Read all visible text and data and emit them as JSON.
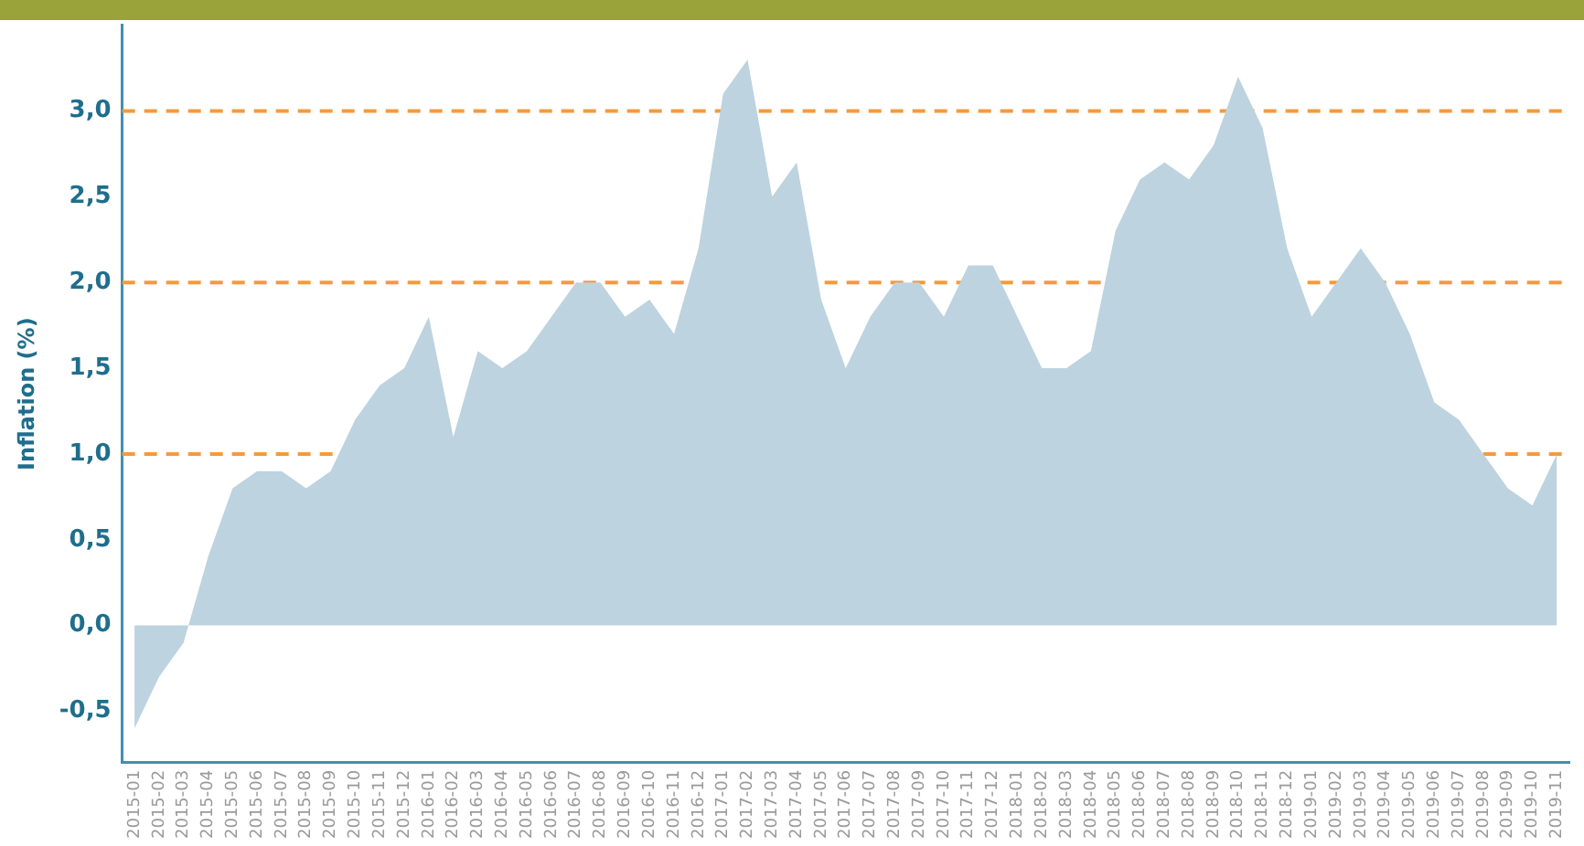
{
  "chart_data": {
    "type": "area",
    "ylabel": "Inflation (%)",
    "categories": [
      "2015-01",
      "2015-02",
      "2015-03",
      "2015-04",
      "2015-05",
      "2015-06",
      "2015-07",
      "2015-08",
      "2015-09",
      "2015-10",
      "2015-11",
      "2015-12",
      "2016-01",
      "2016-02",
      "2016-03",
      "2016-04",
      "2016-05",
      "2016-06",
      "2016-07",
      "2016-08",
      "2016-09",
      "2016-10",
      "2016-11",
      "2016-12",
      "2017-01",
      "2017-02",
      "2017-03",
      "2017-04",
      "2017-05",
      "2017-06",
      "2017-07",
      "2017-08",
      "2017-09",
      "2017-10",
      "2017-11",
      "2017-12",
      "2018-01",
      "2018-02",
      "2018-03",
      "2018-04",
      "2018-05",
      "2018-06",
      "2018-07",
      "2018-08",
      "2018-09",
      "2018-10",
      "2018-11",
      "2018-12",
      "2019-01",
      "2019-02",
      "2019-03",
      "2019-04",
      "2019-05",
      "2019-06",
      "2019-07",
      "2019-08",
      "2019-09",
      "2019-10",
      "2019-11"
    ],
    "values": [
      -0.6,
      -0.3,
      -0.1,
      0.4,
      0.8,
      0.9,
      0.9,
      0.8,
      0.9,
      1.2,
      1.4,
      1.5,
      1.8,
      1.1,
      1.6,
      1.5,
      1.6,
      1.8,
      2.0,
      2.0,
      1.8,
      1.9,
      1.7,
      2.2,
      3.1,
      3.3,
      2.5,
      2.7,
      1.9,
      1.5,
      1.8,
      2.0,
      2.0,
      1.8,
      2.1,
      2.1,
      1.8,
      1.5,
      1.5,
      1.6,
      2.3,
      2.6,
      2.7,
      2.6,
      2.8,
      3.2,
      2.9,
      2.2,
      1.8,
      2.0,
      2.2,
      2.0,
      1.7,
      1.3,
      1.2,
      1.0,
      0.8,
      0.7,
      1.0
    ],
    "color": "#bdd3df",
    "ylim": [
      -0.8,
      3.5
    ],
    "yticks": [
      {
        "value": -0.5,
        "label": "-0,5"
      },
      {
        "value": 0,
        "label": "0,0"
      },
      {
        "value": 0.5,
        "label": "0,5"
      },
      {
        "value": 1,
        "label": "1,0"
      },
      {
        "value": 1.5,
        "label": "1,5"
      },
      {
        "value": 2,
        "label": "2,0"
      },
      {
        "value": 2.5,
        "label": "2,5"
      },
      {
        "value": 3,
        "label": "3,0"
      }
    ],
    "ref_lines": [
      {
        "axis": "y",
        "value": 1,
        "color": "#f59a3c",
        "line_style": "dashed"
      },
      {
        "axis": "y",
        "value": 2,
        "color": "#f59a3c",
        "line_style": "dashed"
      },
      {
        "axis": "y",
        "value": 3,
        "color": "#f59a3c",
        "line_style": "dashed"
      }
    ],
    "grid": false,
    "legend": false
  }
}
